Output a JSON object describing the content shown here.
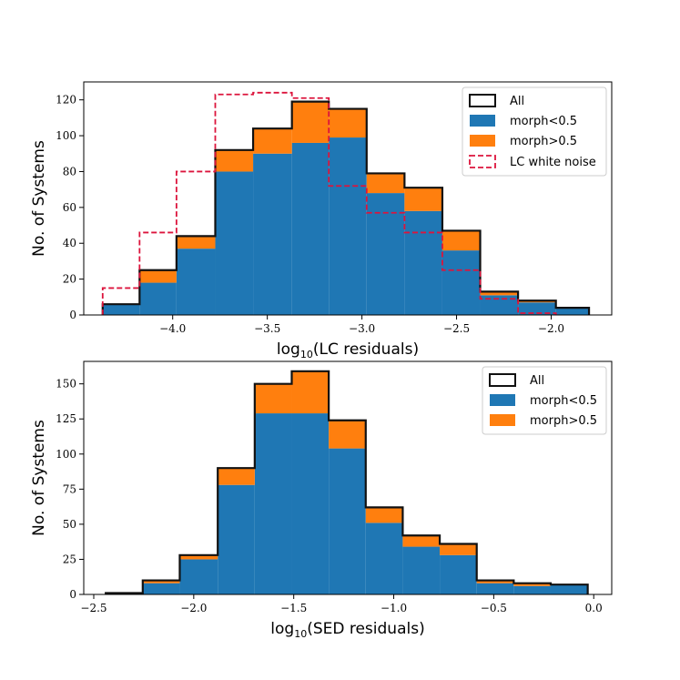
{
  "colors": {
    "morph_low": "#1f77b4",
    "morph_high": "#ff7f0e",
    "all_edge": "#111111",
    "lc_noise": "#dc143c"
  },
  "chart_data": [
    {
      "type": "bar",
      "subtype": "stacked-histogram",
      "xlabel_main": "log",
      "xlabel_sub": "10",
      "xlabel_rest": "(LC residuals)",
      "ylabel": "No. of Systems",
      "xlim": [
        -4.47,
        -1.68
      ],
      "ylim": [
        0,
        130
      ],
      "xticks": [
        -4.0,
        -3.5,
        -3.0,
        -2.5,
        -2.0
      ],
      "xtick_labels": [
        "−4.0",
        "−3.5",
        "−3.0",
        "−2.5",
        "−2.0"
      ],
      "yticks": [
        0,
        20,
        40,
        60,
        80,
        100,
        120
      ],
      "ytick_labels": [
        "0",
        "20",
        "40",
        "60",
        "80",
        "100",
        "120"
      ],
      "bin_edges": [
        -4.37,
        -4.175,
        -3.98,
        -3.775,
        -3.575,
        -3.37,
        -3.175,
        -2.975,
        -2.775,
        -2.575,
        -2.375,
        -2.175,
        -1.975,
        -1.8
      ],
      "series": [
        {
          "name": "All",
          "label": "All",
          "values": [
            6,
            25,
            44,
            92,
            104,
            119,
            115,
            79,
            71,
            47,
            13,
            8,
            4
          ]
        },
        {
          "name": "morph<0.5",
          "label": "morph<0.5",
          "values": [
            6,
            18,
            37,
            80,
            90,
            96,
            99,
            68,
            58,
            36,
            11,
            7,
            4
          ]
        },
        {
          "name": "morph>0.5",
          "label": "morph>0.5",
          "values": [
            0,
            7,
            7,
            12,
            14,
            23,
            16,
            11,
            13,
            11,
            2,
            1,
            0
          ]
        }
      ],
      "step_series": {
        "name": "LC white noise",
        "label": "LC white noise",
        "bin_edges": [
          -4.37,
          -4.175,
          -3.98,
          -3.775,
          -3.575,
          -3.37,
          -3.175,
          -2.975,
          -2.775,
          -2.575,
          -2.375,
          -2.175,
          -1.975
        ],
        "values": [
          15,
          46,
          80,
          123,
          124,
          121,
          72,
          57,
          46,
          25,
          9,
          1
        ]
      },
      "legend_position": "top-right"
    },
    {
      "type": "bar",
      "subtype": "stacked-histogram",
      "xlabel_main": "log",
      "xlabel_sub": "10",
      "xlabel_rest": "(SED residuals)",
      "ylabel": "No. of Systems",
      "xlim": [
        -2.55,
        0.09
      ],
      "ylim": [
        0,
        166
      ],
      "xticks": [
        -2.5,
        -2.0,
        -1.5,
        -1.0,
        -0.5,
        0.0
      ],
      "xtick_labels": [
        "−2.5",
        "−2.0",
        "−1.5",
        "−1.0",
        "−0.5",
        "0.0"
      ],
      "yticks": [
        0,
        25,
        50,
        75,
        100,
        125,
        150
      ],
      "ytick_labels": [
        "0",
        "25",
        "50",
        "75",
        "100",
        "125",
        "150"
      ],
      "bin_edges": [
        -2.44,
        -2.255,
        -2.07,
        -1.88,
        -1.695,
        -1.51,
        -1.325,
        -1.14,
        -0.955,
        -0.77,
        -0.585,
        -0.4,
        -0.215,
        -0.03
      ],
      "series": [
        {
          "name": "All",
          "label": "All",
          "values": [
            1,
            10,
            28,
            90,
            150,
            159,
            124,
            62,
            42,
            36,
            10,
            8,
            7
          ]
        },
        {
          "name": "morph<0.5",
          "label": "morph<0.5",
          "values": [
            1,
            8,
            25,
            78,
            129,
            129,
            104,
            51,
            34,
            28,
            8,
            6,
            7
          ]
        },
        {
          "name": "morph>0.5",
          "label": "morph>0.5",
          "values": [
            0,
            2,
            3,
            12,
            21,
            30,
            20,
            11,
            8,
            8,
            2,
            2,
            0
          ]
        }
      ],
      "legend_position": "top-right"
    }
  ]
}
